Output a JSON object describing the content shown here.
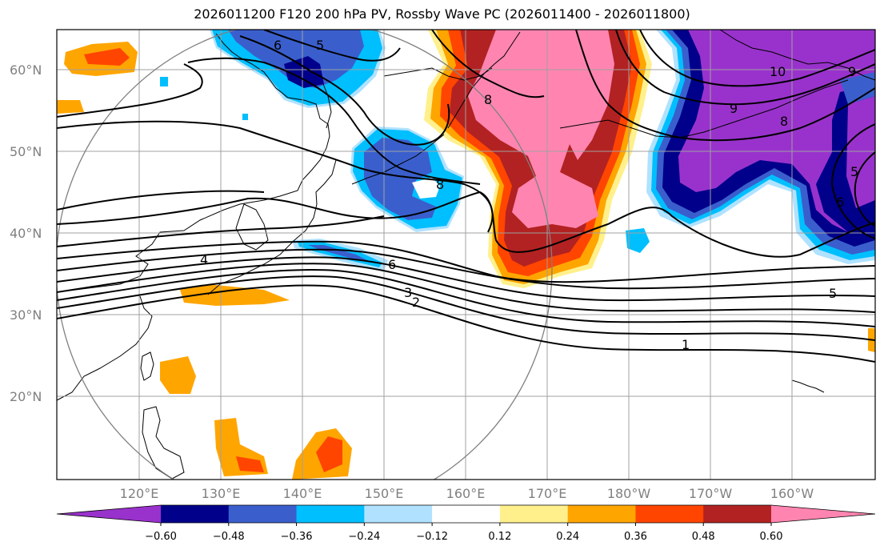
{
  "title": "2026011200 F120 200 hPa PV, Rossby Wave PC (2026011400 - 2026011800)",
  "lon_labels": [
    "120°E",
    "130°E",
    "140°E",
    "150°E",
    "160°E",
    "170°E",
    "180°W",
    "170°W",
    "160°W"
  ],
  "lat_labels": [
    "60°N",
    "50°N",
    "40°N",
    "30°N",
    "20°N"
  ],
  "contour_labels": [
    "6",
    "5",
    "8",
    "8",
    "9",
    "10",
    "9",
    "8",
    "5",
    "6",
    "4",
    "6",
    "3",
    "2",
    "5",
    "1"
  ],
  "colorbar": {
    "colors": [
      "#9932cc",
      "#00008b",
      "#3a5fcd",
      "#00bfff",
      "#b0e2ff",
      "#ffffff",
      "#fff08c",
      "#ffa500",
      "#ff4500",
      "#b22222",
      "#ff85b0"
    ],
    "tick_labels": [
      "−0.60",
      "−0.48",
      "−0.36",
      "−0.24",
      "−0.12",
      "0.12",
      "0.24",
      "0.36",
      "0.48",
      "0.60"
    ]
  },
  "colors": {
    "orange": "#ffa500",
    "red_orange": "#ff4500",
    "dark_red": "#b22222",
    "pink": "#ff85b0",
    "light_yellow": "#fff08c",
    "purple": "#9932cc",
    "navy": "#00008b",
    "royal_blue": "#3a5fcd",
    "sky_blue": "#00bfff",
    "light_blue": "#b0e2ff",
    "grid": "#a0a0a0",
    "circle": "#808080"
  }
}
